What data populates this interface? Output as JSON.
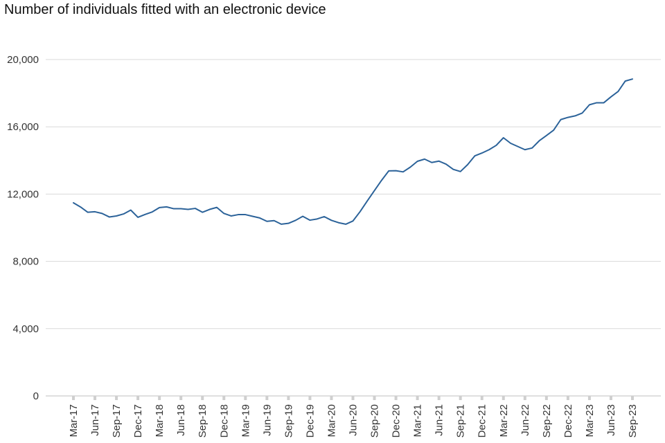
{
  "chart_data": {
    "type": "line",
    "title": "Number of individuals fitted with an electronic device",
    "xlabel": "",
    "ylabel": "",
    "ylim": [
      0,
      20000
    ],
    "yticks": [
      0,
      4000,
      8000,
      12000,
      16000,
      20000
    ],
    "ytick_labels": [
      "0",
      "4,000",
      "8,000",
      "12,000",
      "16,000",
      "20,000"
    ],
    "grid": "horizontal",
    "colors": {
      "line": "#2b6299",
      "grid": "#d9d9d9",
      "axis": "#bfbfbf",
      "tick": "#cfcfcf"
    },
    "xtick_labels": [
      "Mar-17",
      "Jun-17",
      "Sep-17",
      "Dec-17",
      "Mar-18",
      "Jun-18",
      "Sep-18",
      "Dec-18",
      "Mar-19",
      "Jun-19",
      "Sep-19",
      "Dec-19",
      "Mar-20",
      "Jun-20",
      "Sep-20",
      "Dec-20",
      "Mar-21",
      "Jun-21",
      "Sep-21",
      "Dec-21",
      "Mar-22",
      "Jun-22",
      "Sep-22",
      "Dec-22",
      "Mar-23",
      "Jun-23",
      "Sep-23"
    ],
    "x": [
      "Mar-17",
      "Apr-17",
      "May-17",
      "Jun-17",
      "Jul-17",
      "Aug-17",
      "Sep-17",
      "Oct-17",
      "Nov-17",
      "Dec-17",
      "Jan-18",
      "Feb-18",
      "Mar-18",
      "Apr-18",
      "May-18",
      "Jun-18",
      "Jul-18",
      "Aug-18",
      "Sep-18",
      "Oct-18",
      "Nov-18",
      "Dec-18",
      "Jan-19",
      "Feb-19",
      "Mar-19",
      "Apr-19",
      "May-19",
      "Jun-19",
      "Jul-19",
      "Aug-19",
      "Sep-19",
      "Oct-19",
      "Nov-19",
      "Dec-19",
      "Jan-20",
      "Feb-20",
      "Mar-20",
      "Apr-20",
      "May-20",
      "Jun-20",
      "Jul-20",
      "Aug-20",
      "Sep-20",
      "Oct-20",
      "Nov-20",
      "Dec-20",
      "Jan-21",
      "Feb-21",
      "Mar-21",
      "Apr-21",
      "May-21",
      "Jun-21",
      "Jul-21",
      "Aug-21",
      "Sep-21",
      "Oct-21",
      "Nov-21",
      "Dec-21",
      "Jan-22",
      "Feb-22",
      "Mar-22",
      "Apr-22",
      "May-22",
      "Jun-22",
      "Jul-22",
      "Aug-22",
      "Sep-22",
      "Oct-22",
      "Nov-22",
      "Dec-22",
      "Jan-23",
      "Feb-23",
      "Mar-23",
      "Apr-23",
      "May-23",
      "Jun-23",
      "Jul-23",
      "Aug-23",
      "Sep-23"
    ],
    "series": [
      {
        "values": [
          11480,
          11230,
          10920,
          10950,
          10850,
          10640,
          10700,
          10820,
          11050,
          10620,
          10790,
          10940,
          11200,
          11240,
          11130,
          11130,
          11090,
          11150,
          10920,
          11090,
          11210,
          10850,
          10700,
          10780,
          10780,
          10680,
          10580,
          10380,
          10420,
          10210,
          10260,
          10440,
          10680,
          10450,
          10520,
          10660,
          10440,
          10300,
          10210,
          10400,
          10960,
          11590,
          12210,
          12820,
          13380,
          13390,
          13320,
          13600,
          13950,
          14080,
          13880,
          13960,
          13780,
          13470,
          13340,
          13750,
          14270,
          14440,
          14640,
          14900,
          15350,
          15020,
          14830,
          14640,
          14740,
          15170,
          15480,
          15800,
          16430,
          16560,
          16650,
          16820,
          17310,
          17430,
          17430,
          17780,
          18100,
          18720,
          18840
        ]
      }
    ]
  }
}
